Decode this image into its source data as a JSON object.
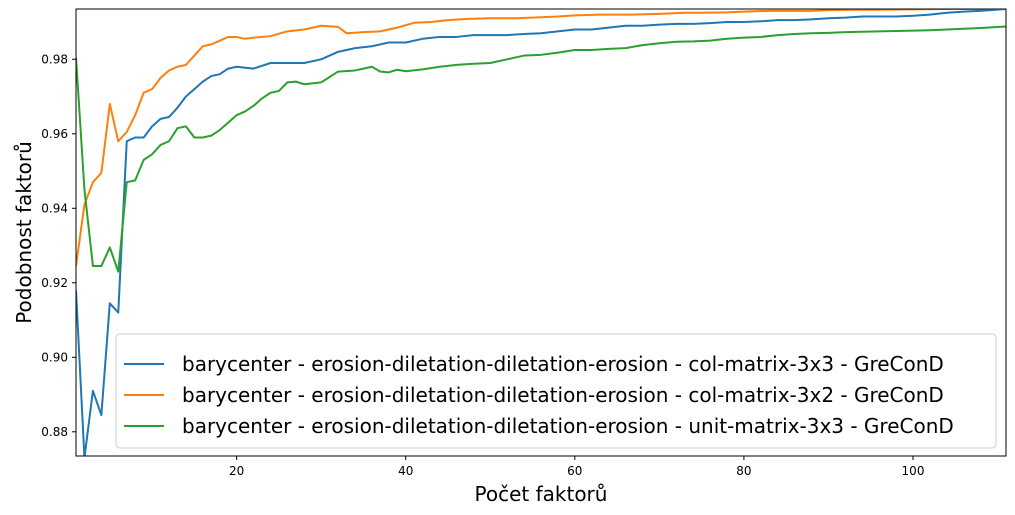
{
  "chart_data": {
    "type": "line",
    "title": "",
    "xlabel": "Počet faktorů",
    "ylabel": "Podobnost faktorů",
    "xlim": [
      1,
      111
    ],
    "ylim": [
      0.8735,
      0.9935
    ],
    "xticks": [
      20,
      40,
      60,
      80,
      100
    ],
    "yticks": [
      0.88,
      0.9,
      0.92,
      0.94,
      0.96,
      0.98
    ],
    "xtick_labels": [
      "20",
      "40",
      "60",
      "80",
      "100"
    ],
    "ytick_labels": [
      "0.88",
      "0.90",
      "0.92",
      "0.94",
      "0.96",
      "0.98"
    ],
    "legend_position": "lower-right",
    "series": [
      {
        "name": "barycenter - erosion-diletation-diletation-erosion - col-matrix-3x3 - GreConD",
        "color": "#1f77b4",
        "points": [
          [
            1,
            0.918
          ],
          [
            2,
            0.873
          ],
          [
            3,
            0.891
          ],
          [
            4,
            0.8845
          ],
          [
            5,
            0.9145
          ],
          [
            6,
            0.912
          ],
          [
            7,
            0.958
          ],
          [
            8,
            0.959
          ],
          [
            9,
            0.959
          ],
          [
            10,
            0.962
          ],
          [
            11,
            0.964
          ],
          [
            12,
            0.9645
          ],
          [
            13,
            0.967
          ],
          [
            14,
            0.97
          ],
          [
            15,
            0.972
          ],
          [
            16,
            0.974
          ],
          [
            17,
            0.9755
          ],
          [
            18,
            0.976
          ],
          [
            19,
            0.9775
          ],
          [
            20,
            0.978
          ],
          [
            22,
            0.9775
          ],
          [
            24,
            0.979
          ],
          [
            26,
            0.979
          ],
          [
            28,
            0.979
          ],
          [
            30,
            0.98
          ],
          [
            32,
            0.982
          ],
          [
            34,
            0.983
          ],
          [
            36,
            0.9835
          ],
          [
            38,
            0.9845
          ],
          [
            40,
            0.9845
          ],
          [
            42,
            0.9855
          ],
          [
            44,
            0.986
          ],
          [
            46,
            0.986
          ],
          [
            48,
            0.9865
          ],
          [
            50,
            0.9865
          ],
          [
            52,
            0.9865
          ],
          [
            54,
            0.9868
          ],
          [
            56,
            0.987
          ],
          [
            58,
            0.9875
          ],
          [
            60,
            0.988
          ],
          [
            62,
            0.988
          ],
          [
            64,
            0.9885
          ],
          [
            66,
            0.989
          ],
          [
            68,
            0.989
          ],
          [
            70,
            0.9893
          ],
          [
            72,
            0.9895
          ],
          [
            74,
            0.9895
          ],
          [
            76,
            0.9897
          ],
          [
            78,
            0.99
          ],
          [
            80,
            0.99
          ],
          [
            82,
            0.9902
          ],
          [
            84,
            0.9905
          ],
          [
            86,
            0.9905
          ],
          [
            88,
            0.9907
          ],
          [
            90,
            0.991
          ],
          [
            92,
            0.9912
          ],
          [
            94,
            0.9915
          ],
          [
            96,
            0.9915
          ],
          [
            98,
            0.9915
          ],
          [
            100,
            0.9917
          ],
          [
            102,
            0.992
          ],
          [
            104,
            0.9925
          ],
          [
            106,
            0.9928
          ],
          [
            108,
            0.993
          ],
          [
            111,
            0.9935
          ]
        ]
      },
      {
        "name": "barycenter - erosion-diletation-diletation-erosion - col-matrix-3x2 - GreConD",
        "color": "#ff7f0e",
        "points": [
          [
            1,
            0.9245
          ],
          [
            2,
            0.941
          ],
          [
            3,
            0.947
          ],
          [
            4,
            0.9495
          ],
          [
            5,
            0.968
          ],
          [
            6,
            0.958
          ],
          [
            7,
            0.9605
          ],
          [
            8,
            0.965
          ],
          [
            9,
            0.971
          ],
          [
            10,
            0.972
          ],
          [
            11,
            0.975
          ],
          [
            12,
            0.977
          ],
          [
            13,
            0.978
          ],
          [
            14,
            0.9785
          ],
          [
            15,
            0.981
          ],
          [
            16,
            0.9835
          ],
          [
            17,
            0.984
          ],
          [
            18,
            0.985
          ],
          [
            19,
            0.986
          ],
          [
            20,
            0.986
          ],
          [
            21,
            0.9855
          ],
          [
            22,
            0.9858
          ],
          [
            24,
            0.9862
          ],
          [
            26,
            0.9875
          ],
          [
            28,
            0.988
          ],
          [
            30,
            0.989
          ],
          [
            32,
            0.9887
          ],
          [
            33,
            0.987
          ],
          [
            35,
            0.9873
          ],
          [
            37,
            0.9875
          ],
          [
            39,
            0.9885
          ],
          [
            41,
            0.9898
          ],
          [
            43,
            0.99
          ],
          [
            45,
            0.9905
          ],
          [
            47,
            0.9908
          ],
          [
            50,
            0.991
          ],
          [
            53,
            0.991
          ],
          [
            55,
            0.9912
          ],
          [
            58,
            0.9915
          ],
          [
            60,
            0.9918
          ],
          [
            63,
            0.992
          ],
          [
            65,
            0.992
          ],
          [
            67,
            0.992
          ],
          [
            70,
            0.9922
          ],
          [
            73,
            0.9925
          ],
          [
            75,
            0.9925
          ],
          [
            78,
            0.9926
          ],
          [
            80,
            0.9928
          ],
          [
            83,
            0.993
          ],
          [
            86,
            0.993
          ],
          [
            88,
            0.993
          ],
          [
            90,
            0.9932
          ],
          [
            93,
            0.9933
          ],
          [
            96,
            0.9933
          ],
          [
            100,
            0.9934
          ],
          [
            104,
            0.9935
          ],
          [
            108,
            0.9935
          ],
          [
            111,
            0.9935
          ]
        ]
      },
      {
        "name": "barycenter - erosion-diletation-diletation-erosion - unit-matrix-3x3 - GreConD",
        "color": "#2ca02c",
        "points": [
          [
            1,
            0.9805
          ],
          [
            2,
            0.945
          ],
          [
            3,
            0.9245
          ],
          [
            4,
            0.9245
          ],
          [
            5,
            0.9295
          ],
          [
            6,
            0.923
          ],
          [
            7,
            0.947
          ],
          [
            8,
            0.9475
          ],
          [
            9,
            0.953
          ],
          [
            10,
            0.9545
          ],
          [
            11,
            0.957
          ],
          [
            12,
            0.958
          ],
          [
            13,
            0.9615
          ],
          [
            14,
            0.962
          ],
          [
            15,
            0.959
          ],
          [
            16,
            0.959
          ],
          [
            17,
            0.9595
          ],
          [
            18,
            0.961
          ],
          [
            19,
            0.963
          ],
          [
            20,
            0.965
          ],
          [
            21,
            0.966
          ],
          [
            22,
            0.9675
          ],
          [
            23,
            0.9695
          ],
          [
            24,
            0.971
          ],
          [
            25,
            0.9715
          ],
          [
            26,
            0.9738
          ],
          [
            27,
            0.974
          ],
          [
            28,
            0.9733
          ],
          [
            30,
            0.9738
          ],
          [
            32,
            0.9767
          ],
          [
            34,
            0.977
          ],
          [
            35,
            0.9775
          ],
          [
            36,
            0.978
          ],
          [
            37,
            0.9767
          ],
          [
            38,
            0.9765
          ],
          [
            39,
            0.9772
          ],
          [
            40,
            0.9768
          ],
          [
            42,
            0.9773
          ],
          [
            44,
            0.978
          ],
          [
            46,
            0.9785
          ],
          [
            48,
            0.9788
          ],
          [
            50,
            0.979
          ],
          [
            52,
            0.98
          ],
          [
            54,
            0.981
          ],
          [
            56,
            0.9812
          ],
          [
            58,
            0.9818
          ],
          [
            60,
            0.9825
          ],
          [
            62,
            0.9825
          ],
          [
            64,
            0.9828
          ],
          [
            66,
            0.983
          ],
          [
            68,
            0.9838
          ],
          [
            70,
            0.9843
          ],
          [
            72,
            0.9847
          ],
          [
            74,
            0.9848
          ],
          [
            76,
            0.985
          ],
          [
            78,
            0.9855
          ],
          [
            80,
            0.9858
          ],
          [
            82,
            0.986
          ],
          [
            84,
            0.9865
          ],
          [
            86,
            0.9868
          ],
          [
            88,
            0.987
          ],
          [
            90,
            0.9871
          ],
          [
            92,
            0.9873
          ],
          [
            94,
            0.9874
          ],
          [
            96,
            0.9875
          ],
          [
            98,
            0.9876
          ],
          [
            100,
            0.9877
          ],
          [
            102,
            0.9878
          ],
          [
            104,
            0.988
          ],
          [
            106,
            0.9882
          ],
          [
            108,
            0.9884
          ],
          [
            111,
            0.9888
          ]
        ]
      }
    ]
  }
}
